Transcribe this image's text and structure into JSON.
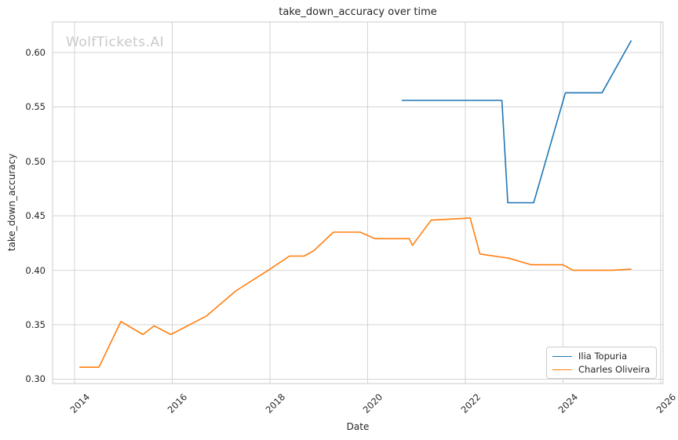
{
  "watermark": "WolfTickets.AI",
  "chart_data": {
    "type": "line",
    "title": "take_down_accuracy over time",
    "xlabel": "Date",
    "ylabel": "take_down_accuracy",
    "grid": true,
    "legend_position": "lower right",
    "xlim": [
      2013.55,
      2026.05
    ],
    "ylim": [
      0.296,
      0.628
    ],
    "x_ticks": [
      2014,
      2016,
      2018,
      2020,
      2022,
      2024,
      2026
    ],
    "y_ticks": [
      0.3,
      0.35,
      0.4,
      0.45,
      0.5,
      0.55,
      0.6
    ],
    "colors": {
      "grid": "#d4d4d4",
      "spine": "#cccccc",
      "text": "#262626",
      "watermark": "#c9c9c9"
    },
    "series": [
      {
        "name": "Ilia Topuria",
        "color": "#1f77b4",
        "x": [
          2020.7,
          2022.75,
          2022.87,
          2023.4,
          2024.05,
          2024.8,
          2025.4
        ],
        "y": [
          0.556,
          0.556,
          0.462,
          0.462,
          0.563,
          0.563,
          0.611
        ]
      },
      {
        "name": "Charles Oliveira",
        "color": "#ff7f0e",
        "x": [
          2014.1,
          2014.5,
          2014.95,
          2015.4,
          2015.63,
          2015.97,
          2016.7,
          2017.3,
          2018.0,
          2018.4,
          2018.7,
          2018.9,
          2019.3,
          2019.85,
          2020.15,
          2020.85,
          2020.92,
          2021.3,
          2022.1,
          2022.3,
          2022.9,
          2023.35,
          2024.0,
          2024.2,
          2025.0,
          2025.4
        ],
        "y": [
          0.311,
          0.311,
          0.353,
          0.341,
          0.349,
          0.341,
          0.358,
          0.381,
          0.401,
          0.413,
          0.413,
          0.418,
          0.435,
          0.435,
          0.429,
          0.429,
          0.423,
          0.446,
          0.448,
          0.415,
          0.411,
          0.405,
          0.405,
          0.4,
          0.4,
          0.401
        ]
      }
    ]
  }
}
